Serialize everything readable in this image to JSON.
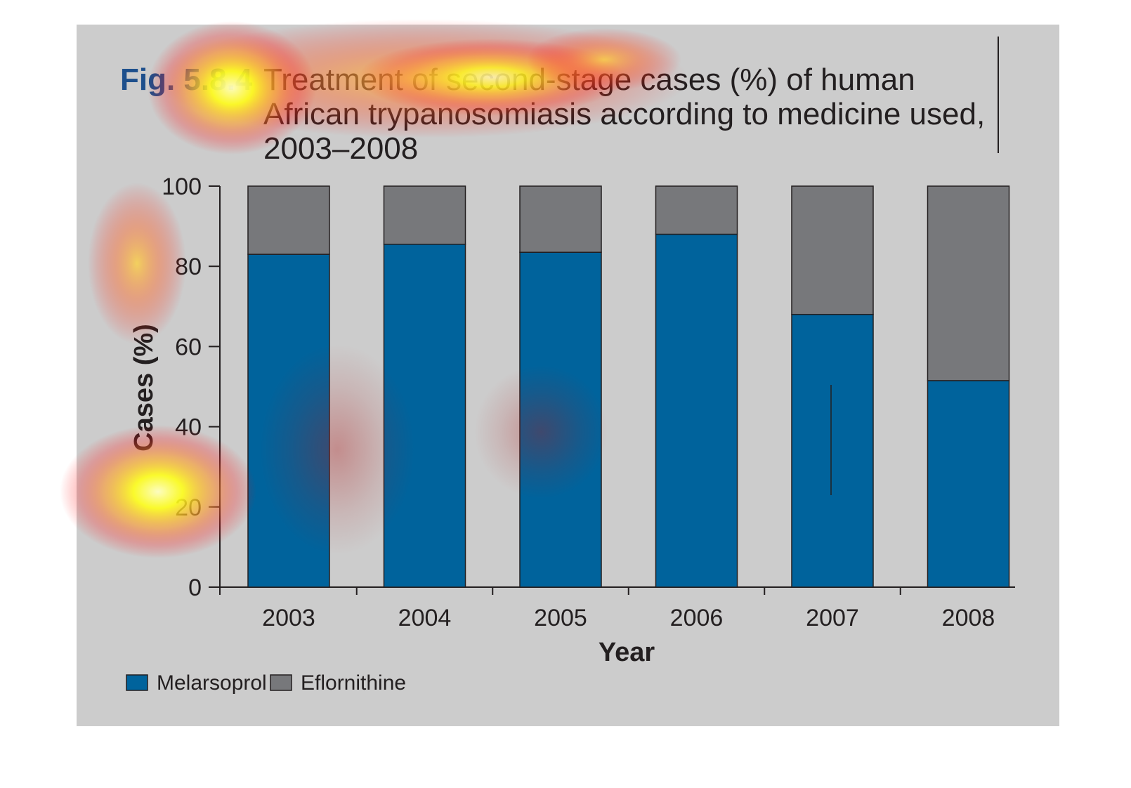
{
  "chart_data": {
    "type": "bar",
    "stacked": true,
    "figure_label": "Fig. 5.8.4",
    "title_lines": [
      "Treatment of second-stage cases (%) of human",
      "African trypanosomiasis according to medicine used,",
      "2003–2008"
    ],
    "xlabel": "Year",
    "ylabel": "Cases (%)",
    "ylim": [
      0,
      100
    ],
    "yticks": [
      "0",
      "20",
      "40",
      "60",
      "80",
      "100"
    ],
    "categories": [
      "2003",
      "2004",
      "2005",
      "2006",
      "2007",
      "2008"
    ],
    "series": [
      {
        "name": "Melarsoprol",
        "color": "#00639c",
        "values": [
          83,
          85.5,
          83.5,
          88,
          68,
          51.5
        ]
      },
      {
        "name": "Eflornithine",
        "color": "#77787b",
        "values": [
          17,
          14.5,
          16.5,
          12,
          32,
          48.5
        ]
      }
    ],
    "legend_position": "bottom-left",
    "grid": false,
    "background_color": "#cccccc",
    "heatmap_overlay": true
  }
}
